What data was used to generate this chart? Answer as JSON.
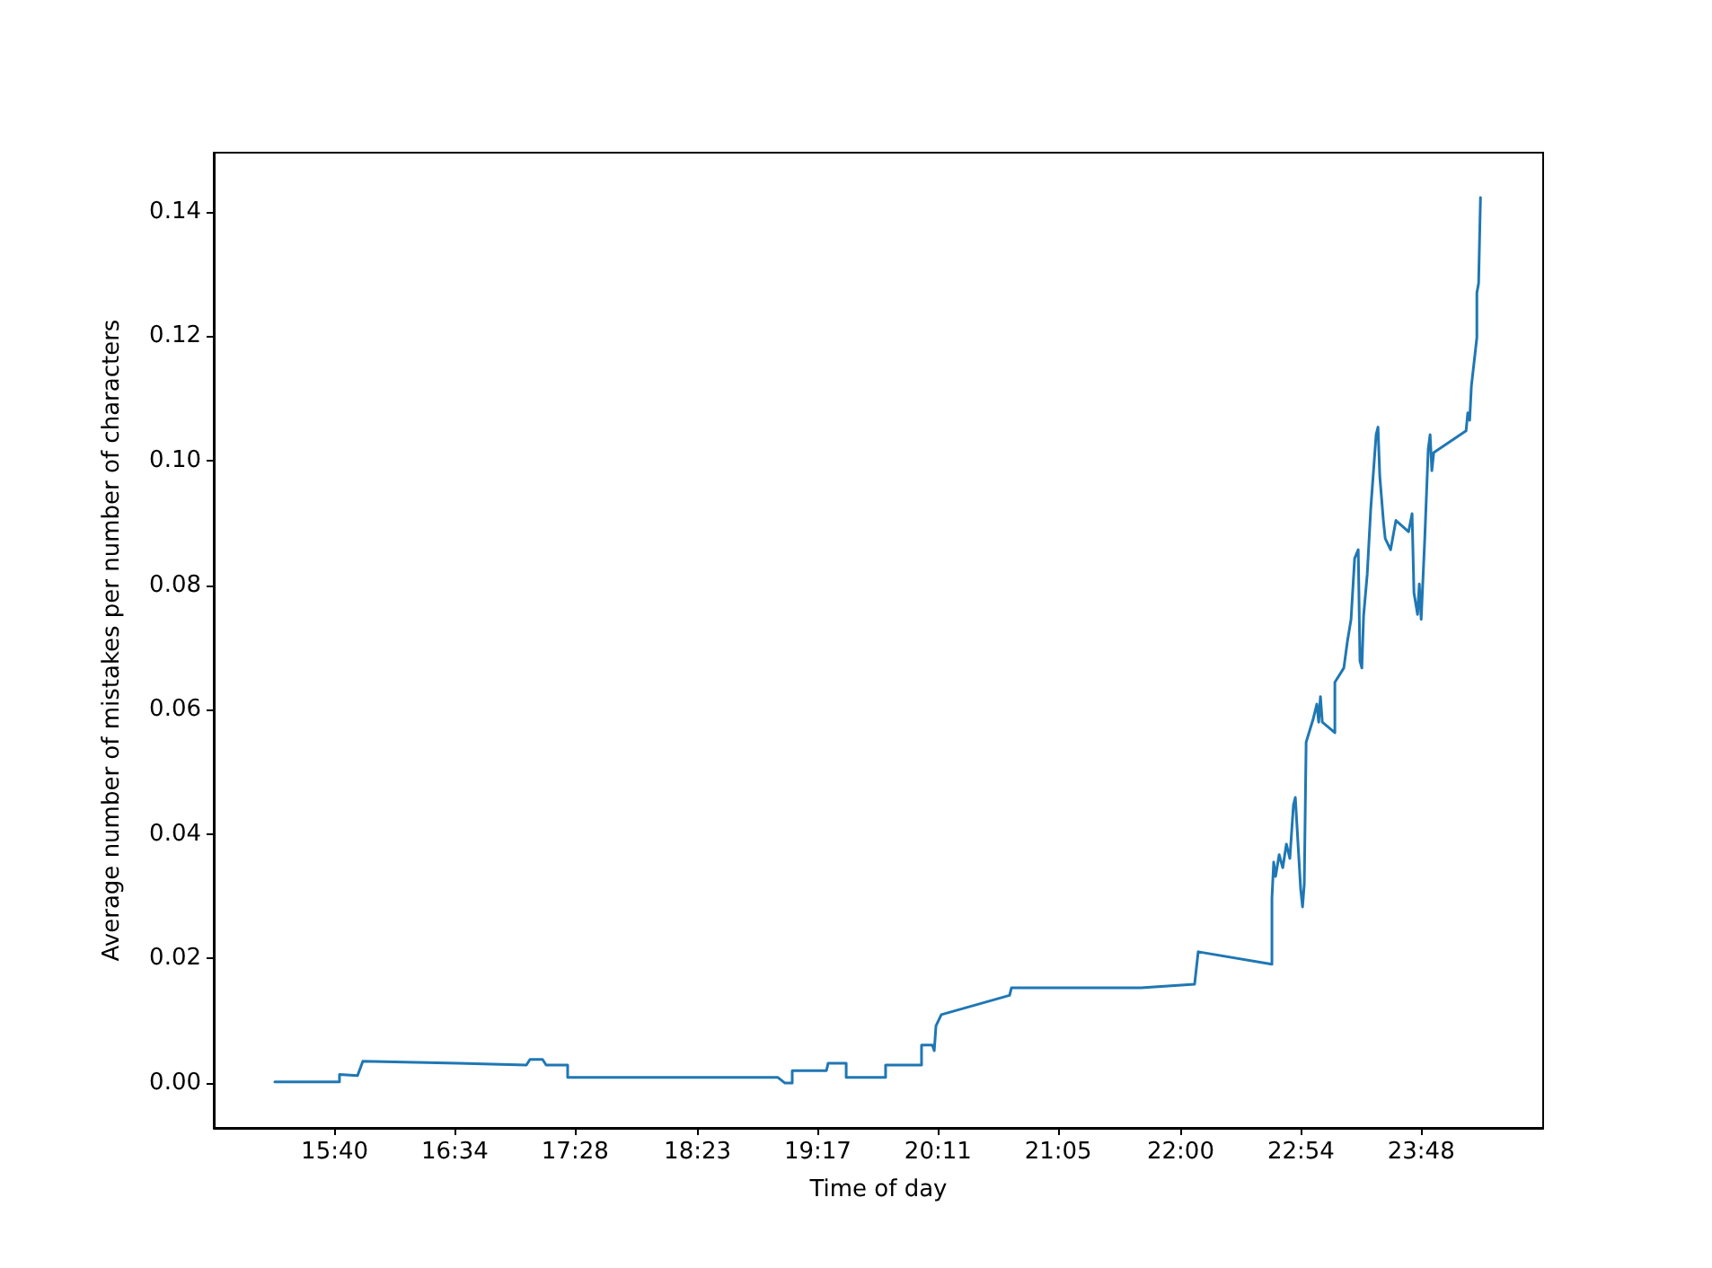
{
  "chart_data": {
    "type": "line",
    "xlabel": "Time of day",
    "ylabel": "Average number of mistakes per number of characters",
    "xlim": [
      14.762,
      24.713
    ],
    "ylim": [
      -0.0072,
      0.1495
    ],
    "xticks": [
      {
        "value": 15.6667,
        "label": "15:40"
      },
      {
        "value": 16.5667,
        "label": "16:34"
      },
      {
        "value": 17.4667,
        "label": "17:28"
      },
      {
        "value": 18.3833,
        "label": "18:23"
      },
      {
        "value": 19.2833,
        "label": "19:17"
      },
      {
        "value": 20.1833,
        "label": "20:11"
      },
      {
        "value": 21.0833,
        "label": "21:05"
      },
      {
        "value": 22.0,
        "label": "22:00"
      },
      {
        "value": 22.9,
        "label": "22:54"
      },
      {
        "value": 23.8,
        "label": "23:48"
      }
    ],
    "yticks": [
      {
        "value": 0,
        "label": "0.00"
      },
      {
        "value": 0.02,
        "label": "0.02"
      },
      {
        "value": 0.04,
        "label": "0.04"
      },
      {
        "value": 0.06,
        "label": "0.06"
      },
      {
        "value": 0.08,
        "label": "0.08"
      },
      {
        "value": 0.1,
        "label": "0.10"
      },
      {
        "value": 0.12,
        "label": "0.12"
      },
      {
        "value": 0.14,
        "label": "0.14"
      }
    ],
    "grid": false,
    "marker": "none",
    "line_style": "solid",
    "series": [
      {
        "color": "#1f77b4",
        "x": [
          15.219,
          15.703,
          15.703,
          15.838,
          15.878,
          16.591,
          17.102,
          17.129,
          17.223,
          17.25,
          17.411,
          17.411,
          18.985,
          19.038,
          19.092,
          19.092,
          19.348,
          19.361,
          19.496,
          19.496,
          19.791,
          19.791,
          20.06,
          20.06,
          20.141,
          20.155,
          20.168,
          20.208,
          20.719,
          20.733,
          21.701,
          22.104,
          22.131,
          22.683,
          22.683,
          22.696,
          22.71,
          22.737,
          22.764,
          22.791,
          22.817,
          22.844,
          22.858,
          22.898,
          22.912,
          22.925,
          22.939,
          22.993,
          23.019,
          23.033,
          23.046,
          23.06,
          23.154,
          23.154,
          23.221,
          23.248,
          23.275,
          23.302,
          23.329,
          23.342,
          23.356,
          23.369,
          23.396,
          23.423,
          23.463,
          23.477,
          23.49,
          23.517,
          23.531,
          23.571,
          23.611,
          23.706,
          23.732,
          23.746,
          23.773,
          23.786,
          23.8,
          23.827,
          23.853,
          23.867,
          23.88,
          23.894,
          24.136,
          24.149,
          24.163,
          24.176,
          24.217,
          24.217,
          24.23,
          24.244
        ],
        "values": [
          0.0002,
          0.0002,
          0.0014,
          0.0012,
          0.0035,
          0.0032,
          0.0029,
          0.0038,
          0.0038,
          0.0029,
          0.0029,
          0.0009,
          0.0009,
          0.0,
          0.0,
          0.002,
          0.002,
          0.0032,
          0.0032,
          0.0009,
          0.0009,
          0.0029,
          0.0029,
          0.0061,
          0.0061,
          0.0052,
          0.0092,
          0.011,
          0.0141,
          0.0153,
          0.0153,
          0.0159,
          0.0211,
          0.0191,
          0.0297,
          0.0355,
          0.0332,
          0.0367,
          0.0346,
          0.0384,
          0.0361,
          0.0447,
          0.0459,
          0.0312,
          0.0283,
          0.032,
          0.0548,
          0.0586,
          0.0609,
          0.058,
          0.0621,
          0.058,
          0.0563,
          0.0644,
          0.0667,
          0.071,
          0.0745,
          0.0843,
          0.0857,
          0.0678,
          0.0667,
          0.0751,
          0.0817,
          0.0924,
          0.1042,
          0.1054,
          0.0976,
          0.0904,
          0.0875,
          0.0857,
          0.0904,
          0.0886,
          0.0915,
          0.0788,
          0.0753,
          0.0802,
          0.0745,
          0.0875,
          0.1019,
          0.1042,
          0.0984,
          0.1013,
          0.1048,
          0.1077,
          0.1065,
          0.112,
          0.1198,
          0.127,
          0.1285,
          0.1423
        ]
      }
    ]
  }
}
